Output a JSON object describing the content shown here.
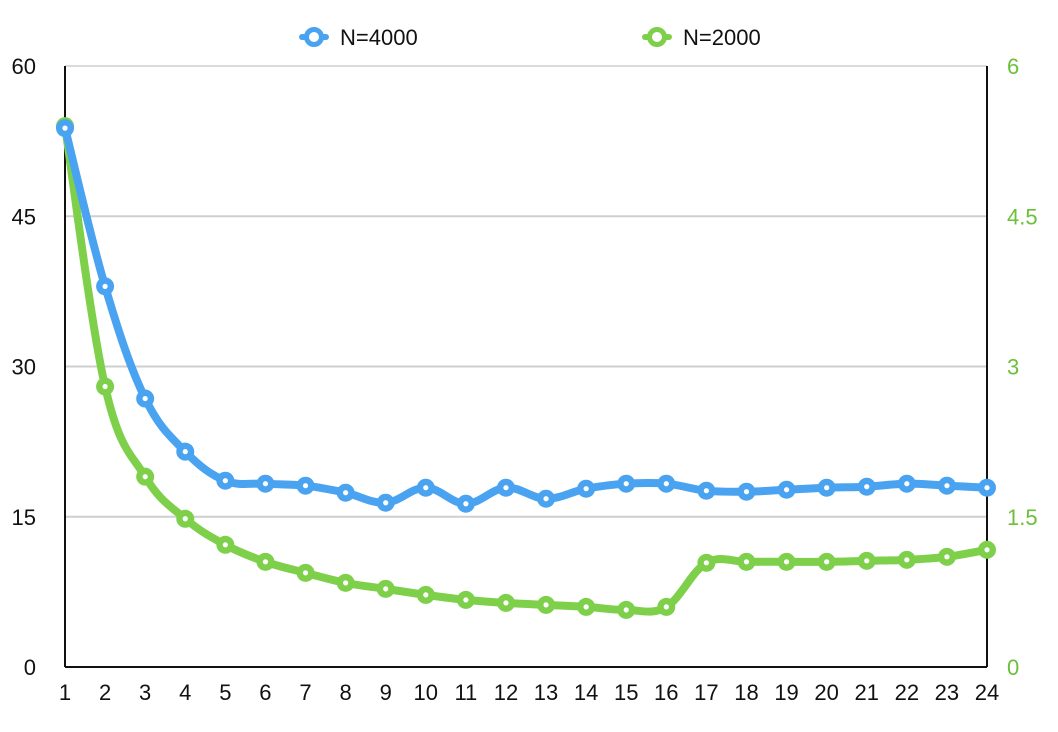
{
  "chart_data": {
    "type": "line",
    "categories": [
      "1",
      "2",
      "3",
      "4",
      "5",
      "6",
      "7",
      "8",
      "9",
      "10",
      "11",
      "12",
      "13",
      "14",
      "15",
      "16",
      "17",
      "18",
      "19",
      "20",
      "21",
      "22",
      "23",
      "24"
    ],
    "series": [
      {
        "name": "N=4000",
        "axis": "left",
        "color": "#4aa3f0",
        "values": [
          53.8,
          38.0,
          26.8,
          21.5,
          18.6,
          18.3,
          18.1,
          17.4,
          16.4,
          17.9,
          16.3,
          17.9,
          16.8,
          17.8,
          18.3,
          18.3,
          17.6,
          17.5,
          17.7,
          17.9,
          18.0,
          18.3,
          18.1,
          17.9
        ]
      },
      {
        "name": "N=2000",
        "axis": "right",
        "color": "#7ed04b",
        "values": [
          5.4,
          2.8,
          1.9,
          1.48,
          1.22,
          1.05,
          0.94,
          0.84,
          0.78,
          0.72,
          0.67,
          0.64,
          0.62,
          0.6,
          0.57,
          0.6,
          1.04,
          1.05,
          1.05,
          1.05,
          1.06,
          1.07,
          1.1,
          1.17
        ]
      }
    ],
    "left_axis": {
      "min": 0,
      "max": 60,
      "ticks": [
        0,
        15,
        30,
        45,
        60
      ],
      "tick_labels": [
        "0",
        "15",
        "30",
        "45",
        "60"
      ],
      "color": "#111111"
    },
    "right_axis": {
      "min": 0,
      "max": 6,
      "ticks": [
        0,
        1.5,
        3,
        4.5,
        6
      ],
      "tick_labels": [
        "0",
        "1.5",
        "3",
        "4.5",
        "6"
      ],
      "color": "#6cbf3a"
    },
    "grid": "horizontal",
    "legend": "top-center",
    "title": "",
    "xlabel": "",
    "ylabel": ""
  }
}
